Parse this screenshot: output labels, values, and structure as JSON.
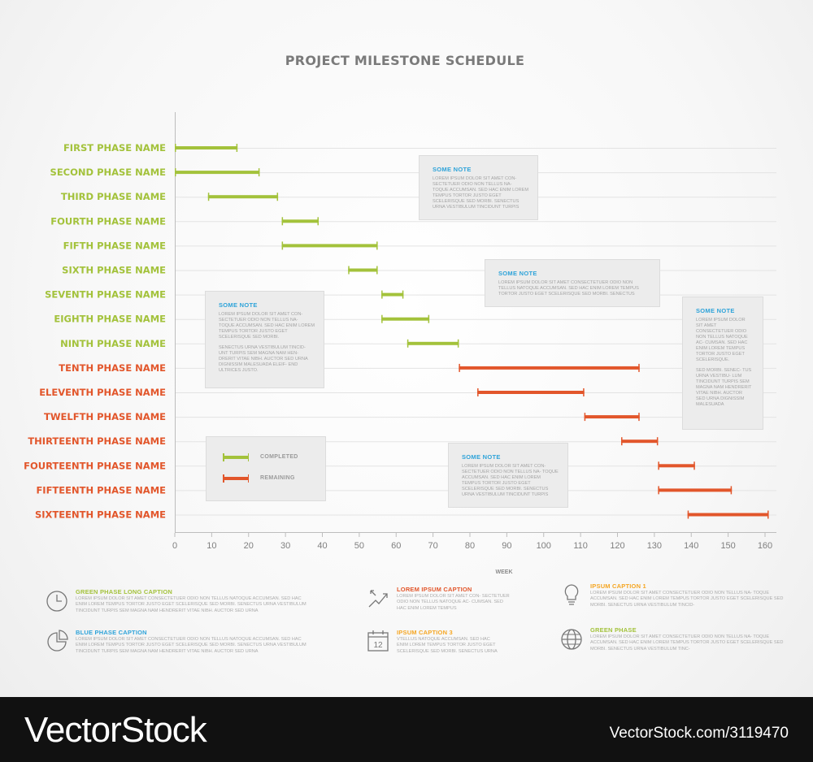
{
  "colors": {
    "completed": "#a3c23b",
    "remaining": "#e2562b",
    "note_title": "#2ea3d9",
    "orange_caption": "#f5a623"
  },
  "chart_data": {
    "type": "gantt",
    "title": "PROJECT MILESTONE SCHEDULE",
    "xlabel": "WEEK",
    "xlim": [
      0,
      160
    ],
    "xticks": [
      0,
      10,
      20,
      30,
      40,
      50,
      60,
      70,
      80,
      90,
      100,
      110,
      120,
      130,
      140,
      150,
      160
    ],
    "tasks": [
      {
        "name": "FIRST PHASE NAME",
        "start": 0,
        "end": 17,
        "status": "completed"
      },
      {
        "name": "SECOND PHASE NAME",
        "start": 0,
        "end": 23,
        "status": "completed"
      },
      {
        "name": "THIRD PHASE NAME",
        "start": 9,
        "end": 28,
        "status": "completed"
      },
      {
        "name": "FOURTH PHASE NAME",
        "start": 29,
        "end": 39,
        "status": "completed"
      },
      {
        "name": "FIFTH PHASE NAME",
        "start": 29,
        "end": 55,
        "status": "completed"
      },
      {
        "name": "SIXTH PHASE NAME",
        "start": 47,
        "end": 55,
        "status": "completed"
      },
      {
        "name": "SEVENTH PHASE NAME",
        "start": 56,
        "end": 62,
        "status": "completed"
      },
      {
        "name": "EIGHTH PHASE NAME",
        "start": 56,
        "end": 69,
        "status": "completed"
      },
      {
        "name": "NINTH PHASE NAME",
        "start": 63,
        "end": 77,
        "status": "completed"
      },
      {
        "name": "TENTH PHASE NAME",
        "start": 77,
        "end": 126,
        "status": "remaining"
      },
      {
        "name": "ELEVENTH PHASE NAME",
        "start": 82,
        "end": 111,
        "status": "remaining"
      },
      {
        "name": "TWELFTH PHASE NAME",
        "start": 111,
        "end": 126,
        "status": "remaining"
      },
      {
        "name": "THIRTEENTH PHASE NAME",
        "start": 121,
        "end": 131,
        "status": "remaining"
      },
      {
        "name": "FOURTEENTH PHASE NAME",
        "start": 131,
        "end": 141,
        "status": "remaining"
      },
      {
        "name": "FIFTEENTH PHASE NAME",
        "start": 131,
        "end": 151,
        "status": "remaining"
      },
      {
        "name": "SIXTEENTH PHASE NAME",
        "start": 139,
        "end": 161,
        "status": "remaining"
      }
    ],
    "legend": [
      {
        "label": "COMPLETED",
        "status": "completed"
      },
      {
        "label": "REMAINING",
        "status": "remaining"
      }
    ]
  },
  "notes": [
    {
      "title": "SOME NOTE",
      "text": "LOREM IPSUM DOLOR SIT AMET CON- SECTETUER ODIO NON TELLUS NA- TOQUE ACCUMSAN. SED HAC ENIM LOREM TEMPUS TORTOR JUSTO EGET SCELERISQUE SED MORBI. SENECTUS URNA VESTIBULUM TINCIDUNT TURPIS"
    },
    {
      "title": "SOME NOTE",
      "text": "LOREM IPSUM DOLOR SIT AMET CONSECTETUER ODIO NON TELLUS NATOQUE ACCUMSAN. SED HAC ENIM LOREM TEMPUS TORTOR JUSTO EGET SCELERISQUE SED MORBI. SENECTUS"
    },
    {
      "title": "SOME NOTE",
      "text": "LOREM IPSUM DOLOR SIT AMET CON- SECTETUER ODIO NON TELLUS NA- TOQUE ACCUMSAN. SED HAC ENIM LOREM TEMPUS TORTOR JUSTO EGET SCELERISQUE SED MORBI.",
      "text2": "SENECTUS URNA VESTIBULUM TINCID- UNT TURPIS SEM MAGNA NAM HEN- DRERIT VITAE NIBH. AUCTOR SED URNA DIGNISSIM MALESUADA ELEIF- END ULTRICES JUSTO."
    },
    {
      "title": "SOME NOTE",
      "text": "LOREM IPSUM DOLOR SIT AMET CON- SECTETUER ODIO NON TELLUS NA- TOQUE ACCUMSAN. SED HAC ENIM LOREM TEMPUS TORTOR JUSTO EGET SCELERISQUE SED MORBI. SENECTUS URNA VESTIBULUM TINCIDUNT TURPIS"
    },
    {
      "title": "SOME NOTE",
      "text": "LOREM IPSUM DOLOR SIT AMET CONSECTETUER ODIO NON TELLUS NATOQUE AC- CUMSAN. SED HAC ENIM LOREM TEMPUS TORTOR JUSTO EGET SCELERISQUE.",
      "text2": "SED MORBI. SENEC- TUS URNA VESTIBU- LUM TINCIDUNT TURPIS SEM MAGNA NAM HENDRERIT VITAE NIBH. AUCTOR SED URNA DIGNISSIM MALESUADA"
    }
  ],
  "captions": [
    {
      "title": "GREEN PHASE LONG CAPTION",
      "color": "#a3c23b",
      "icon": "clock-icon",
      "text": "LOREM IPSUM DOLOR SIT AMET CONSECTETUER ODIO NON TELLUS NATOQUE ACCUMSAN. SED HAC ENIM LOREM TEMPUS TORTOR JUSTO EGET SCELERISQUE SED MORBI. SENECTUS URNA VESTIBULUM TINCIDUNT TURPIS SEM MAGNA NAM HENDRERIT VITAE NIBH. AUCTOR SED URNA"
    },
    {
      "title": "LOREM IPSUM CAPTION",
      "color": "#e2562b",
      "icon": "growth-arrows-icon",
      "text": "LOREM IPSUM DOLOR SIT AMET CON- SECTETUER ODIO NON TELLUS NATOQUE AC- CUMSAN. SED HAC ENIM LOREM TEMPUS"
    },
    {
      "title": "IPSUM CAPTION 1",
      "color": "#f5a623",
      "icon": "lightbulb-icon",
      "text": "LOREM IPSUM DOLOR SIT AMET CONSECTETUER ODIO NON TELLUS NA- TOQUE ACCUMSAN. SED HAC ENIM LOREM TEMPUS TORTOR JUSTO EGET SCELERISQUE SED MORBI. SENECTUS URNA VESTIBULUM TINCID-"
    },
    {
      "title": "BLUE PHASE CAPTION",
      "color": "#2ea3d9",
      "icon": "pie-chart-icon",
      "text": "LOREM IPSUM DOLOR SIT AMET CONSECTETUER ODIO NON TELLUS NATOQUE ACCUMSAN. SED HAC ENIM LOREM TEMPUS TORTOR JUSTO EGET SCELERISQUE SED MORBI. SENECTUS URNA VESTIBULUM TINCIDUNT TURPIS SEM MAGNA NAM HENDRERIT VITAE NIBH. AUCTOR SED URNA"
    },
    {
      "title": "IPSUM CAPTION 3",
      "color": "#f5a623",
      "icon": "calendar-icon",
      "icon_text": "12",
      "text": "VTELLUS NATOQUE ACCUMSAN. SED HAC ENIM LOREM TEMPUS TORTOR JUSTO EGET SCELERISQUE SED MORBI. SENECTUS URNA"
    },
    {
      "title": "GREEN PHASE",
      "color": "#a3c23b",
      "icon": "globe-icon",
      "text": "LOREM IPSUM DOLOR SIT AMET CONSECTETUER ODIO NON TELLUS NA- TOQUE ACCUMSAN. SED HAC ENIM LOREM TEMPUS TORTOR JUSTO EGET SCELERISQUE SED MORBI. SENECTUS URNA VESTIBULUM TINC-"
    }
  ],
  "banner": {
    "left": "VectorStock",
    "right": "VectorStock.com/3119470"
  }
}
